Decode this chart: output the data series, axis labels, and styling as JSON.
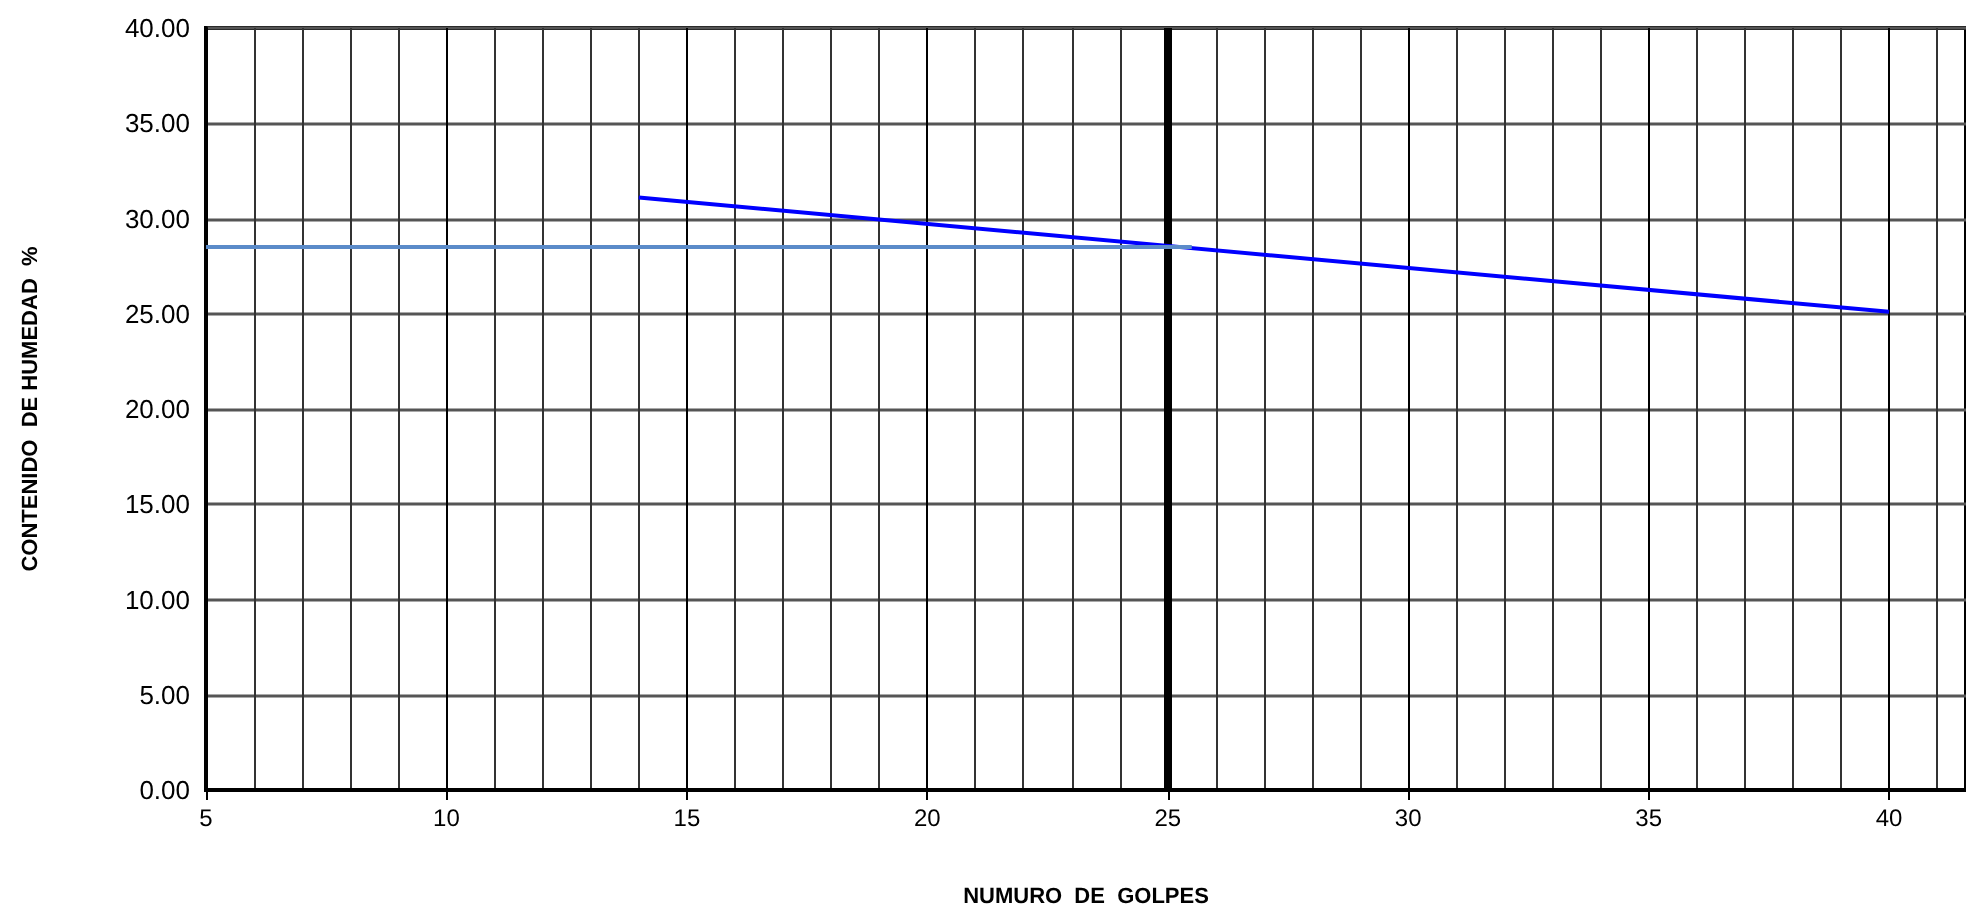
{
  "chart_data": {
    "type": "line",
    "xlabel": "NUMURO  DE  GOLPES",
    "ylabel": "CONTENIDO  DE HUMEDAD  %",
    "series": [
      {
        "x": [
          14,
          40
        ],
        "values": [
          31.1,
          25.1
        ],
        "color": "#0000ff"
      },
      {
        "x": [
          5,
          25.5
        ],
        "values": [
          28.5,
          28.5
        ],
        "color": "#5b8bc9"
      }
    ],
    "xlim": [
      5,
      41.6
    ],
    "xticks": [
      5,
      10,
      15,
      20,
      25,
      30,
      35,
      40
    ],
    "ylim": [
      0,
      40
    ],
    "yticks": [
      {
        "value": 0,
        "label": "0.00"
      },
      {
        "value": 5,
        "label": "5.00"
      },
      {
        "value": 10,
        "label": "10.00"
      },
      {
        "value": 15,
        "label": "15.00"
      },
      {
        "value": 20,
        "label": "20.00"
      },
      {
        "value": 25,
        "label": "25.00"
      },
      {
        "value": 30,
        "label": "30.00"
      },
      {
        "value": 35,
        "label": "35.00"
      },
      {
        "value": 40,
        "label": "40.00"
      }
    ],
    "ref_lines": [
      {
        "axis": "x",
        "value": 25,
        "color": "#000000"
      }
    ],
    "grid": true,
    "marker": "none",
    "line_style": "solid"
  }
}
